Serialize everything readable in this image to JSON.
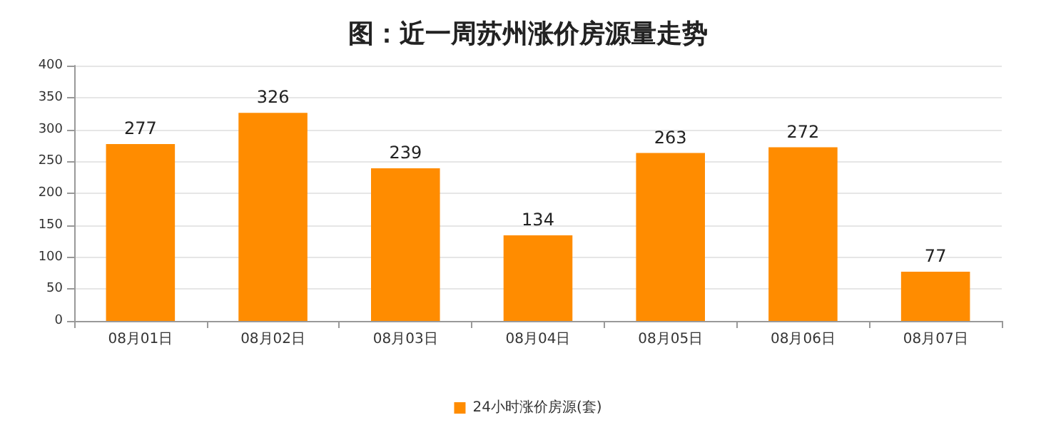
{
  "chart_data": {
    "type": "bar",
    "title": "图：近一周苏州涨价房源量走势",
    "categories": [
      "08月01日",
      "08月02日",
      "08月03日",
      "08月04日",
      "08月05日",
      "08月06日",
      "08月07日"
    ],
    "series": [
      {
        "name": "24小时涨价房源(套)",
        "color": "#ff8c00",
        "values": [
          277,
          326,
          239,
          134,
          263,
          272,
          77
        ]
      }
    ],
    "ylim": [
      0,
      400
    ],
    "yticks": [
      0,
      50,
      100,
      150,
      200,
      250,
      300,
      350,
      400
    ],
    "grid": "y",
    "legend": "bottom",
    "data_labels": true
  }
}
